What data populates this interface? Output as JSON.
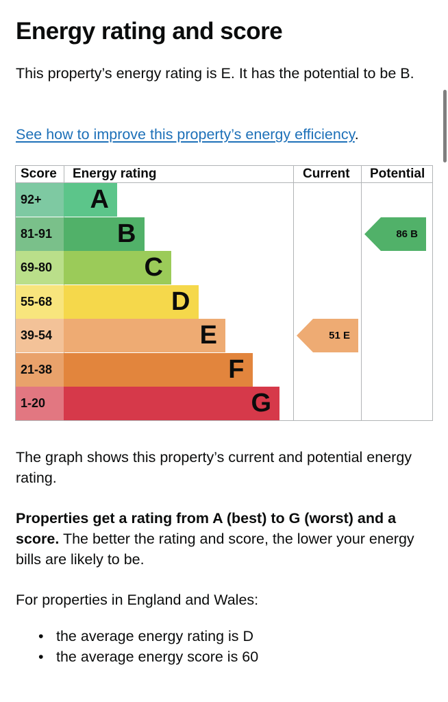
{
  "heading": "Energy rating and score",
  "intro": "This property’s energy rating is E. It has the potential to be B.",
  "improve_link": "See how to improve this property’s energy efficiency",
  "improve_suffix": ".",
  "epc": {
    "headers": {
      "score": "Score",
      "energy_rating": "Energy rating",
      "current": "Current",
      "potential": "Potential"
    },
    "bands": [
      {
        "score": "92+",
        "letter": "A",
        "color": "#5cc58a",
        "score_bg": "#7ec9a2"
      },
      {
        "score": "81-91",
        "letter": "B",
        "color": "#51b169",
        "score_bg": "#7ac08a"
      },
      {
        "score": "69-80",
        "letter": "C",
        "color": "#9bcb59",
        "score_bg": "#badf8a"
      },
      {
        "score": "55-68",
        "letter": "D",
        "color": "#f5d84b",
        "score_bg": "#f8e57d"
      },
      {
        "score": "39-54",
        "letter": "E",
        "color": "#eeab73",
        "score_bg": "#f3c298"
      },
      {
        "score": "21-38",
        "letter": "F",
        "color": "#e2853d",
        "score_bg": "#e9a26b"
      },
      {
        "score": "1-20",
        "letter": "G",
        "color": "#d6394a",
        "score_bg": "#e27781"
      }
    ],
    "current": {
      "label": "51 E",
      "score": 51,
      "band": "E",
      "color": "#eeab73"
    },
    "potential": {
      "label": "86 B",
      "score": 86,
      "band": "B",
      "color": "#51b169"
    }
  },
  "graph_text": "The graph shows this property’s current and potential energy rating.",
  "rating_bold": "Properties get a rating from A (best) to G (worst) and a score.",
  "rating_rest": " The better the rating and score, the lower your energy bills are likely to be.",
  "region_intro": "For properties in England and Wales:",
  "averages": [
    "the average energy rating is D",
    "the average energy score is 60"
  ]
}
